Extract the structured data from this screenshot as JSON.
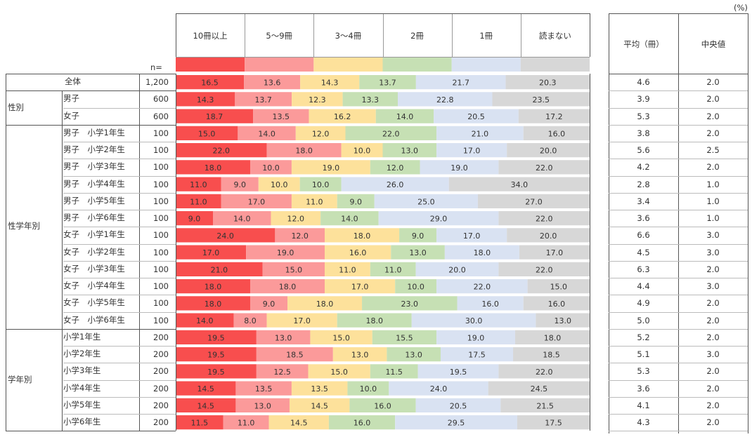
{
  "unit_label": "(%)",
  "n_label": "n=",
  "stat_headers": [
    "平均（冊）",
    "中央値"
  ],
  "colors": [
    "#f84e4e",
    "#fb9a9a",
    "#fde19b",
    "#c6e0b4",
    "#d9e2f2",
    "#d7d7d7"
  ],
  "chart_data": {
    "type": "bar",
    "stacked": true,
    "orientation": "horizontal",
    "unit": "%",
    "series": [
      {
        "name": "10冊以上",
        "color": "#f84e4e"
      },
      {
        "name": "5～9冊",
        "color": "#fb9a9a"
      },
      {
        "name": "3～4冊",
        "color": "#fde19b"
      },
      {
        "name": "2冊",
        "color": "#c6e0b4"
      },
      {
        "name": "1冊",
        "color": "#d9e2f2"
      },
      {
        "name": "読まない",
        "color": "#d7d7d7"
      }
    ],
    "groups": [
      {
        "label": "",
        "rows": [
          {
            "label": "全体",
            "n": "1,200",
            "values": [
              16.5,
              13.6,
              14.3,
              13.7,
              21.7,
              20.3
            ],
            "avg": "4.6",
            "median": "2.0"
          }
        ]
      },
      {
        "label": "性別",
        "rows": [
          {
            "label": "男子",
            "n": "600",
            "values": [
              14.3,
              13.7,
              12.3,
              13.3,
              22.8,
              23.5
            ],
            "avg": "3.9",
            "median": "2.0"
          },
          {
            "label": "女子",
            "n": "600",
            "values": [
              18.7,
              13.5,
              16.2,
              14.0,
              20.5,
              17.2
            ],
            "avg": "5.3",
            "median": "2.0"
          }
        ]
      },
      {
        "label": "性学年別",
        "rows": [
          {
            "label": "男子　小学1年生",
            "n": "100",
            "values": [
              15.0,
              14.0,
              12.0,
              22.0,
              21.0,
              16.0
            ],
            "avg": "3.8",
            "median": "2.0"
          },
          {
            "label": "男子　小学2年生",
            "n": "100",
            "values": [
              22.0,
              18.0,
              10.0,
              13.0,
              17.0,
              20.0
            ],
            "avg": "5.6",
            "median": "2.5"
          },
          {
            "label": "男子　小学3年生",
            "n": "100",
            "values": [
              18.0,
              10.0,
              19.0,
              12.0,
              19.0,
              22.0
            ],
            "avg": "4.2",
            "median": "2.0"
          },
          {
            "label": "男子　小学4年生",
            "n": "100",
            "values": [
              11.0,
              9.0,
              10.0,
              10.0,
              26.0,
              34.0
            ],
            "avg": "2.8",
            "median": "1.0"
          },
          {
            "label": "男子　小学5年生",
            "n": "100",
            "values": [
              11.0,
              17.0,
              11.0,
              9.0,
              25.0,
              27.0
            ],
            "avg": "3.4",
            "median": "1.0"
          },
          {
            "label": "男子　小学6年生",
            "n": "100",
            "values": [
              9.0,
              14.0,
              12.0,
              14.0,
              29.0,
              22.0
            ],
            "avg": "3.6",
            "median": "1.0"
          },
          {
            "label": "女子　小学1年生",
            "n": "100",
            "values": [
              24.0,
              12.0,
              18.0,
              9.0,
              17.0,
              20.0
            ],
            "avg": "6.6",
            "median": "3.0"
          },
          {
            "label": "女子　小学2年生",
            "n": "100",
            "values": [
              17.0,
              19.0,
              16.0,
              13.0,
              18.0,
              17.0
            ],
            "avg": "4.5",
            "median": "3.0"
          },
          {
            "label": "女子　小学3年生",
            "n": "100",
            "values": [
              21.0,
              15.0,
              11.0,
              11.0,
              20.0,
              22.0
            ],
            "avg": "6.3",
            "median": "2.0"
          },
          {
            "label": "女子　小学4年生",
            "n": "100",
            "values": [
              18.0,
              18.0,
              17.0,
              10.0,
              22.0,
              15.0
            ],
            "avg": "4.4",
            "median": "3.0"
          },
          {
            "label": "女子　小学5年生",
            "n": "100",
            "values": [
              18.0,
              9.0,
              18.0,
              23.0,
              16.0,
              16.0
            ],
            "avg": "4.9",
            "median": "2.0"
          },
          {
            "label": "女子　小学6年生",
            "n": "100",
            "values": [
              14.0,
              8.0,
              17.0,
              18.0,
              30.0,
              13.0
            ],
            "avg": "5.0",
            "median": "2.0"
          }
        ]
      },
      {
        "label": "学年別",
        "rows": [
          {
            "label": "小学1年生",
            "n": "200",
            "values": [
              19.5,
              13.0,
              15.0,
              15.5,
              19.0,
              18.0
            ],
            "avg": "5.2",
            "median": "2.0"
          },
          {
            "label": "小学2年生",
            "n": "200",
            "values": [
              19.5,
              18.5,
              13.0,
              13.0,
              17.5,
              18.5
            ],
            "avg": "5.1",
            "median": "3.0"
          },
          {
            "label": "小学3年生",
            "n": "200",
            "values": [
              19.5,
              12.5,
              15.0,
              11.5,
              19.5,
              22.0
            ],
            "avg": "5.3",
            "median": "2.0"
          },
          {
            "label": "小学4年生",
            "n": "200",
            "values": [
              14.5,
              13.5,
              13.5,
              10.0,
              24.0,
              24.5
            ],
            "avg": "3.6",
            "median": "2.0"
          },
          {
            "label": "小学5年生",
            "n": "200",
            "values": [
              14.5,
              13.0,
              14.5,
              16.0,
              20.5,
              21.5
            ],
            "avg": "4.1",
            "median": "2.0"
          },
          {
            "label": "小学6年生",
            "n": "200",
            "values": [
              11.5,
              11.0,
              14.5,
              16.0,
              29.5,
              17.5
            ],
            "avg": "4.3",
            "median": "2.0"
          }
        ]
      }
    ]
  }
}
